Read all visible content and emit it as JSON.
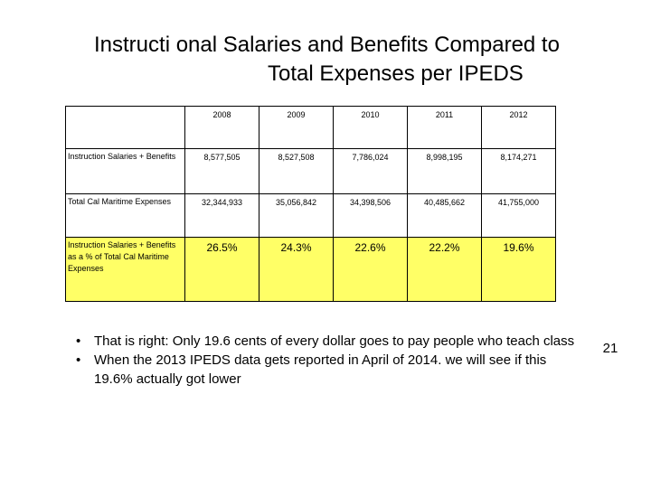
{
  "title": {
    "line1": "Instructi onal Salaries and Benefits Compared to",
    "line2": "Total Expenses per IPEDS"
  },
  "table": {
    "years": [
      "2008",
      "2009",
      "2010",
      "2011",
      "2012"
    ],
    "rows": [
      {
        "label": "Instruction Salaries + Benefits",
        "values": [
          "8,577,505",
          "8,527,508",
          "7,786,024",
          "8,998,195",
          "8,174,271"
        ]
      },
      {
        "label": "Total Cal Maritime Expenses",
        "values": [
          "32,344,933",
          "35,056,842",
          "34,398,506",
          "40,485,662",
          "41,755,000"
        ]
      },
      {
        "label": "Instruction  Salaries + Benefits as a % of Total Cal Maritime Expenses",
        "values": [
          "26.5%",
          "24.3%",
          "22.6%",
          "22.2%",
          "19.6%"
        ]
      }
    ],
    "highlight_color": "#ffff66"
  },
  "notes": [
    "That is right: Only 19.6 cents of every dollar goes to pay people who teach class",
    "When the 2013 IPEDS data gets reported in April of 2014. we will see if this 19.6% actually got lower"
  ],
  "page_number": "21"
}
